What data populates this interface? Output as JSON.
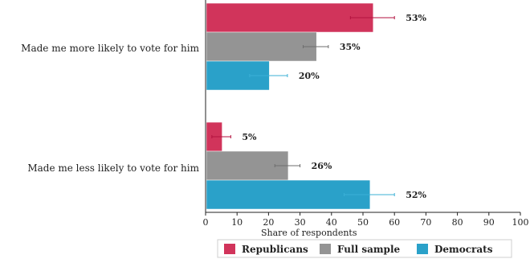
{
  "chart_data": {
    "type": "bar",
    "orientation": "horizontal",
    "categories": [
      "Made me more likely to vote for him",
      "Made me less likely to vote for him"
    ],
    "series": [
      {
        "name": "Republicans",
        "values": [
          53,
          5
        ],
        "error": [
          7,
          3
        ],
        "labels": [
          "53%",
          "5%"
        ],
        "color": "#d1345b"
      },
      {
        "name": "Full sample",
        "values": [
          35,
          26
        ],
        "error": [
          4,
          4
        ],
        "labels": [
          "35%",
          "26%"
        ],
        "color": "#949494"
      },
      {
        "name": "Democrats",
        "values": [
          20,
          52
        ],
        "error": [
          6,
          8
        ],
        "labels": [
          "20%",
          "52%"
        ],
        "color": "#2aa1c9"
      }
    ],
    "xlabel": "Share of respondents",
    "xlim": [
      0,
      100
    ],
    "xticks": [
      0,
      10,
      20,
      30,
      40,
      50,
      60,
      70,
      80,
      90,
      100
    ],
    "grid": false,
    "legend_position": "bottom"
  }
}
